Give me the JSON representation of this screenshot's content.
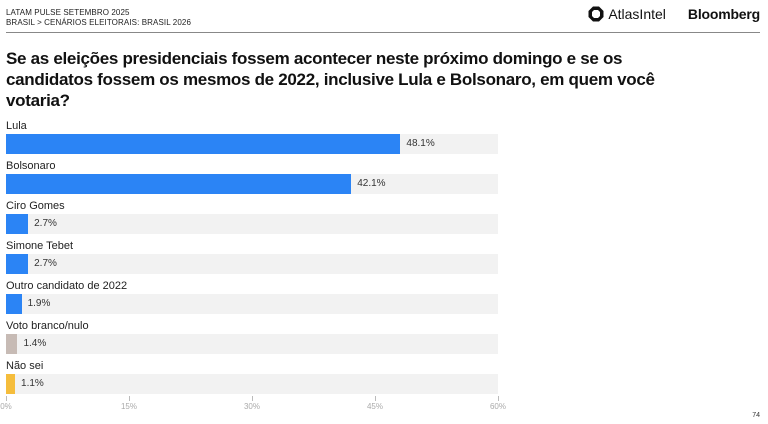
{
  "header": {
    "line1": "LATAM PULSE SETEMBRO 2025",
    "line2": "BRASIL > CENÁRIOS ELEITORAIS: BRASIL 2026",
    "logos": {
      "atlas": "AtlasIntel",
      "bloomberg": "Bloomberg"
    }
  },
  "title": "Se as eleições presidenciais fossem acontecer neste próximo domingo e se os candidatos fossem os mesmos de 2022, inclusive Lula e Bolsonaro, em quem você votaria?",
  "page_number": "74",
  "axis": {
    "ticks": [
      "0%",
      "15%",
      "30%",
      "45%",
      "60%"
    ]
  },
  "colors": {
    "candidate": "#2b84f5",
    "blank_null": "#c7bbb5",
    "dont_know": "#f5bd3c",
    "track": "#f2f2f2"
  },
  "rows": [
    {
      "label": "Lula",
      "value": 48.1,
      "display": "48.1%",
      "color": "#2b84f5"
    },
    {
      "label": "Bolsonaro",
      "value": 42.1,
      "display": "42.1%",
      "color": "#2b84f5"
    },
    {
      "label": "Ciro Gomes",
      "value": 2.7,
      "display": "2.7%",
      "color": "#2b84f5"
    },
    {
      "label": "Simone Tebet",
      "value": 2.7,
      "display": "2.7%",
      "color": "#2b84f5"
    },
    {
      "label": "Outro candidato de 2022",
      "value": 1.9,
      "display": "1.9%",
      "color": "#2b84f5"
    },
    {
      "label": "Voto branco/nulo",
      "value": 1.4,
      "display": "1.4%",
      "color": "#c7bbb5"
    },
    {
      "label": "Não sei",
      "value": 1.1,
      "display": "1.1%",
      "color": "#f5bd3c"
    }
  ],
  "chart_data": {
    "type": "bar",
    "orientation": "horizontal",
    "title": "Se as eleições presidenciais fossem acontecer neste próximo domingo e se os candidatos fossem os mesmos de 2022, inclusive Lula e Bolsonaro, em quem você votaria?",
    "categories": [
      "Lula",
      "Bolsonaro",
      "Ciro Gomes",
      "Simone Tebet",
      "Outro candidato de 2022",
      "Voto branco/nulo",
      "Não sei"
    ],
    "values": [
      48.1,
      42.1,
      2.7,
      2.7,
      1.9,
      1.4,
      1.1
    ],
    "value_labels": [
      "48.1%",
      "42.1%",
      "2.7%",
      "2.7%",
      "1.9%",
      "1.4%",
      "1.1%"
    ],
    "xlabel": "",
    "ylabel": "",
    "xlim": [
      0,
      60
    ],
    "xticks": [
      "0%",
      "15%",
      "30%",
      "45%",
      "60%"
    ],
    "grid": false,
    "legend": null
  }
}
